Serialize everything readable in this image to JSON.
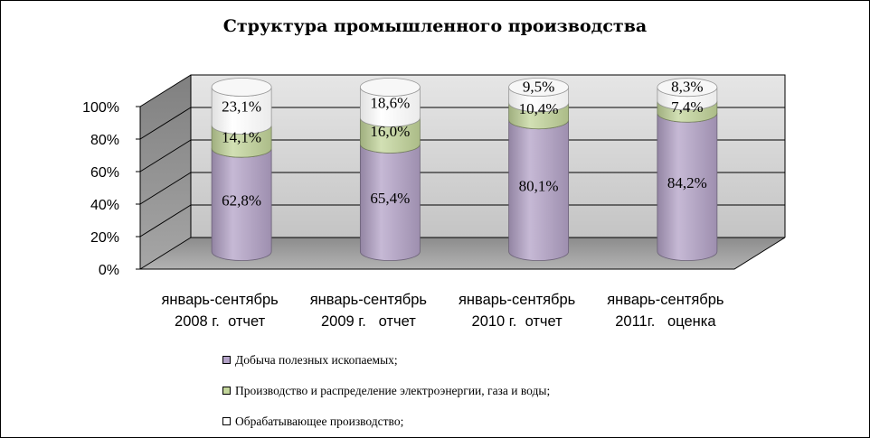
{
  "chart_data": {
    "type": "bar",
    "stacked": true,
    "three_d": true,
    "title": "Структура промышленного производства",
    "categories": [
      [
        "январь-сентябрь",
        "2008 г.  отчет"
      ],
      [
        "январь-сентябрь",
        "2009 г.   отчет"
      ],
      [
        "январь-сентябрь",
        "2010 г.  отчет"
      ],
      [
        "январь-сентябрь",
        "2011г.   оценка"
      ]
    ],
    "y_ticks": [
      "0%",
      "20%",
      "40%",
      "60%",
      "80%",
      "100%"
    ],
    "ylim": [
      0,
      100
    ],
    "series": [
      {
        "name": "Добыча полезных ископаемых;",
        "values": [
          62.8,
          65.4,
          80.1,
          84.2
        ],
        "labels": [
          "62,8%",
          "65,4%",
          "80,1%",
          "84,2%"
        ],
        "color": "#b3a2c7"
      },
      {
        "name": "Производство и распределение электроэнергии, газа и воды;",
        "values": [
          14.1,
          16.0,
          10.4,
          7.4
        ],
        "labels": [
          "14,1%",
          "16,0%",
          "10,4%",
          "7,4%"
        ],
        "color": "#c3d69b"
      },
      {
        "name": "Обрабатывающее производство;",
        "values": [
          23.1,
          18.6,
          9.5,
          8.3
        ],
        "labels": [
          "23,1%",
          "18,6%",
          "9,5%",
          "8,3%"
        ],
        "color": "#ffffff"
      }
    ],
    "legend": "bottom",
    "grid": true
  }
}
